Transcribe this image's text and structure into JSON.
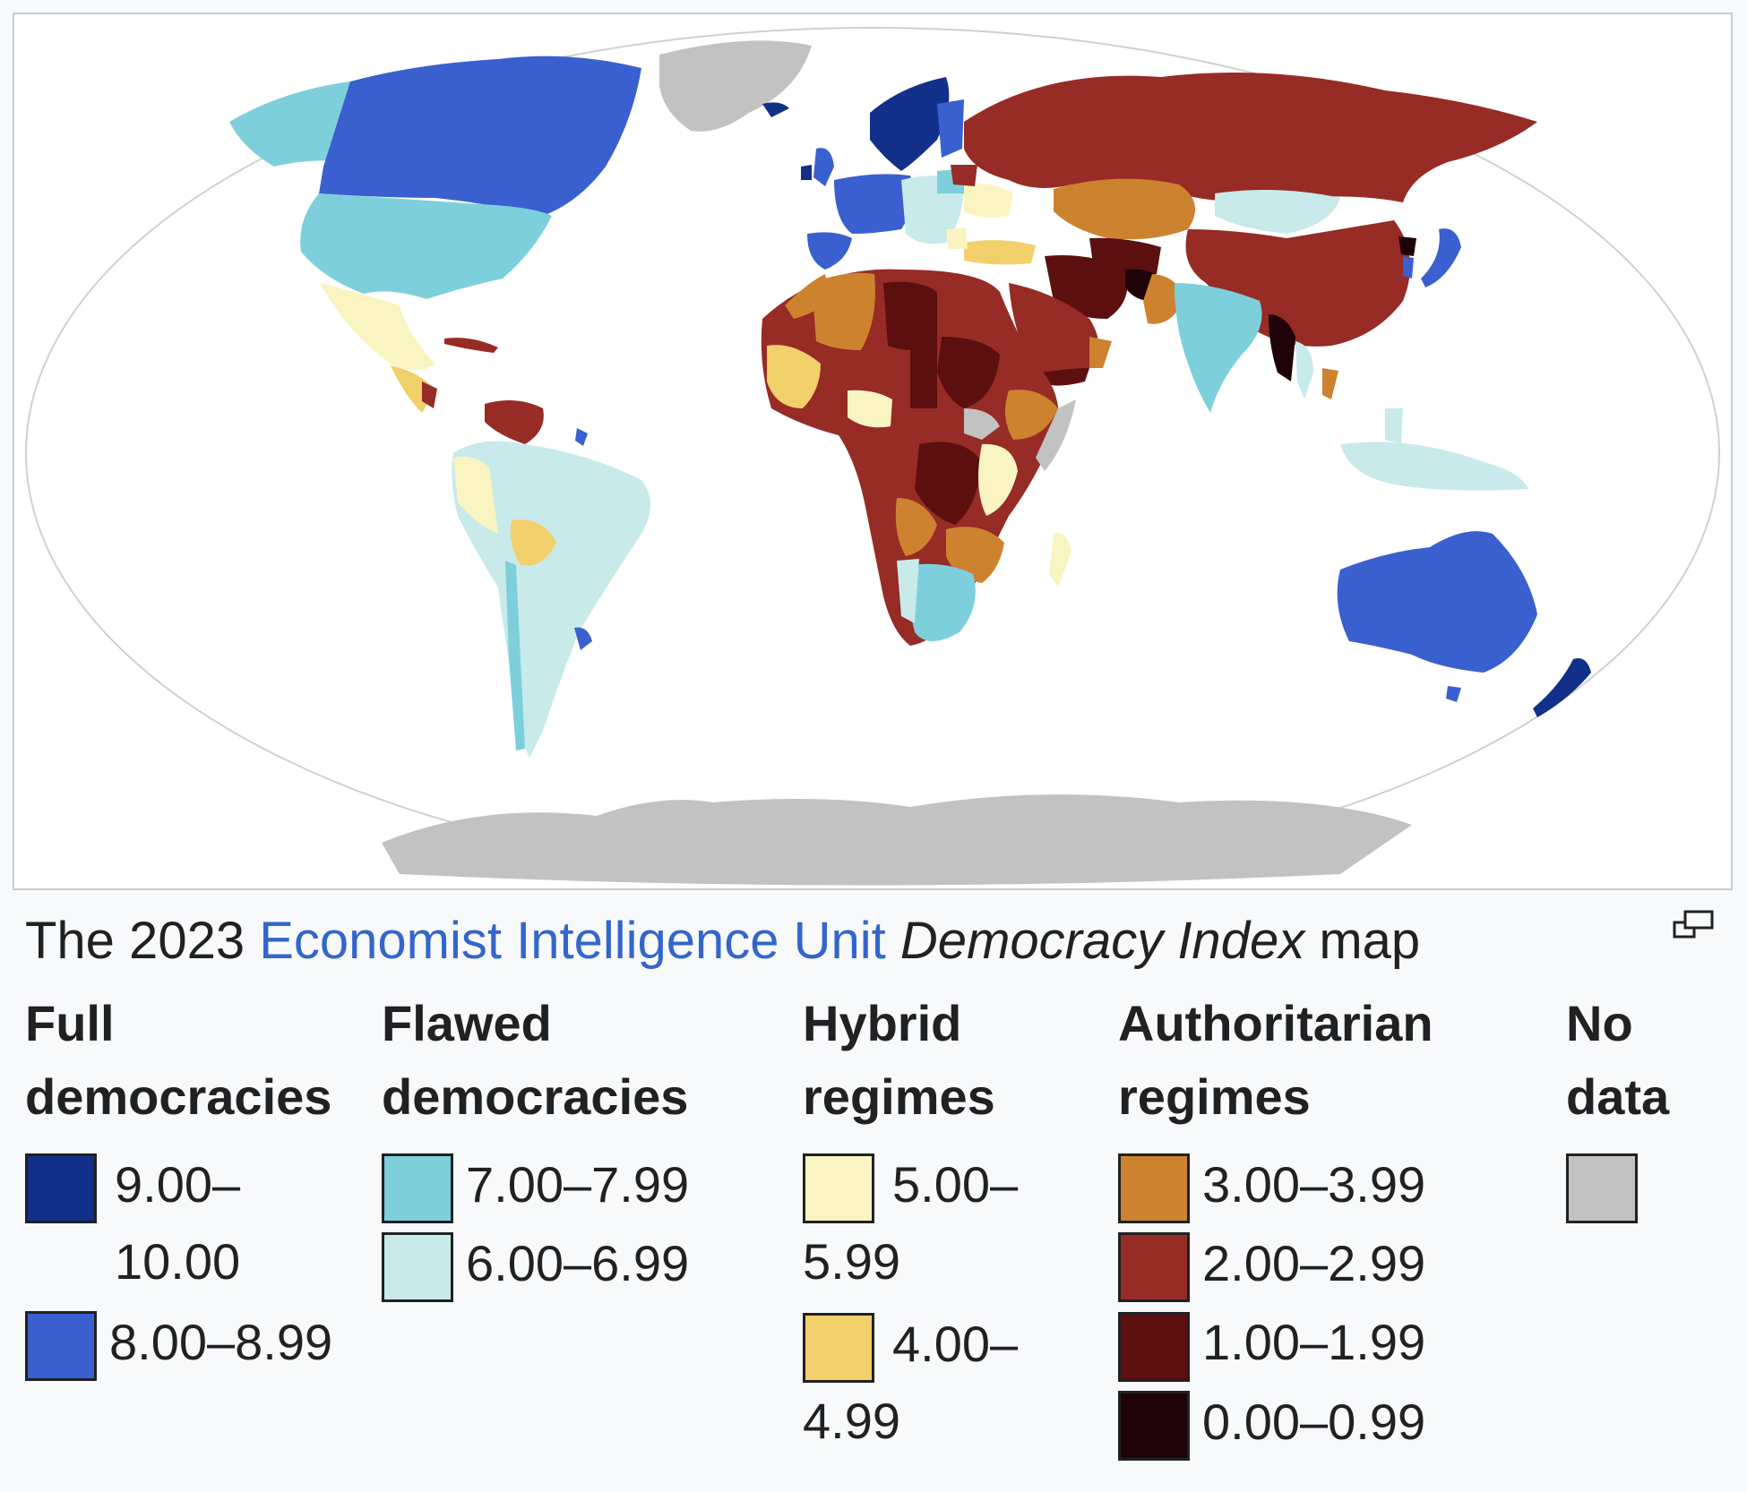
{
  "caption": {
    "prefix": "The 2023",
    "link": "Economist Intelligence Unit",
    "italic": "Democracy Index",
    "suffix": "map"
  },
  "colors": {
    "full_9_10": "#12308a",
    "full_8_9": "#3a5fcf",
    "flawed_7_8": "#7ecfdc",
    "flawed_6_7": "#c8eaea",
    "hybrid_5_6": "#f9f4c2",
    "hybrid_4_5": "#f1d06b",
    "auth_3_4": "#cd8230",
    "auth_2_3": "#972b25",
    "auth_1_2": "#5c0f0f",
    "auth_0_1": "#1f0208",
    "no_data": "#c2c2c2",
    "link": "#3366cc"
  },
  "legend": {
    "full": {
      "line1": "Full",
      "line2": "democracies",
      "items": [
        "9.00–10.00",
        "8.00–8.99"
      ]
    },
    "flawed": {
      "line1": "Flawed",
      "line2": "democracies",
      "items": [
        "7.00–7.99",
        "6.00–6.99"
      ]
    },
    "hybrid": {
      "line1": "Hybrid",
      "line2": "regimes",
      "items": [
        "5.00–5.99",
        "4.00–4.99"
      ]
    },
    "authoritarian": {
      "line1": "Authoritarian",
      "line2": "regimes",
      "items": [
        "3.00–3.99",
        "2.00–2.99",
        "1.00–1.99",
        "0.00–0.99"
      ]
    },
    "nodata": {
      "line1": "No",
      "line2": "data"
    }
  },
  "icons": {
    "enlarge": "enlarge-icon"
  }
}
